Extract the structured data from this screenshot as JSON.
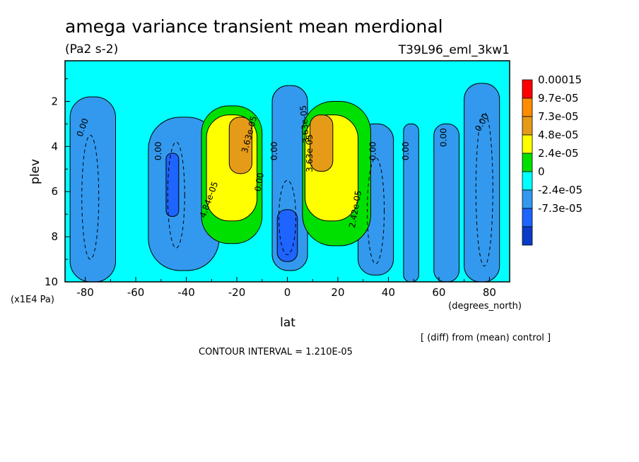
{
  "chart_data": {
    "type": "heatmap",
    "title": "amega variance transient mean merdional",
    "units": "(Pa2 s-2)",
    "run_id": "T39L96_eml_3kw1",
    "xlabel": "lat",
    "x_unit": "(degrees_north)",
    "ylabel": "plev",
    "y_unit": "(x1E4 Pa)",
    "x_ticks": [
      "-80",
      "-60",
      "-40",
      "-20",
      "0",
      "20",
      "40",
      "60",
      "80"
    ],
    "x_tick_values": [
      -80,
      -60,
      -40,
      -20,
      0,
      20,
      40,
      60,
      80
    ],
    "y_ticks": [
      "2",
      "4",
      "6",
      "8",
      "10"
    ],
    "y_tick_values": [
      2,
      4,
      6,
      8,
      10
    ],
    "xlim": [
      -88,
      88
    ],
    "ylim": [
      10,
      0.2
    ],
    "y_inverted": true,
    "grid": false,
    "legend_placement": "right",
    "legend": {
      "labels": [
        "0.00015",
        "9.7e-05",
        "7.3e-05",
        "4.8e-05",
        "2.4e-05",
        "0",
        "-2.4e-05",
        "-7.3e-05"
      ],
      "colors": [
        "#ff0000",
        "#ff8c00",
        "#e69b18",
        "#ffff00",
        "#00e000",
        "#00ffff",
        "#3399ee",
        "#1e64ff",
        "#0a3cc8"
      ]
    },
    "contour_labels": [
      "0.00",
      "0.00",
      "4.84e-05",
      "3.63e-05",
      "0.00",
      "3.63e-05",
      "3.63e-05",
      "2.42e-05",
      "0.00",
      "0.00",
      "0.00",
      "0.00",
      "0.00"
    ],
    "contour_interval_text": "CONTOUR INTERVAL = 1.210E-05",
    "diff_note": "[ (diff) from (mean) control ]",
    "regions": [
      {
        "level": "0",
        "lat": [
          -88,
          88
        ],
        "plev": [
          0.2,
          10
        ]
      },
      {
        "level": "-2.4e-05",
        "lat": [
          -86,
          -68
        ],
        "plev": [
          1.8,
          10
        ]
      },
      {
        "level": "-2.4e-05",
        "lat": [
          -55,
          -27
        ],
        "plev": [
          2.7,
          9.5
        ]
      },
      {
        "level": "-2.4e-05",
        "lat": [
          -6,
          8
        ],
        "plev": [
          1.3,
          9.5
        ]
      },
      {
        "level": "-2.4e-05",
        "lat": [
          28,
          42
        ],
        "plev": [
          3.0,
          9.7
        ]
      },
      {
        "level": "-2.4e-05",
        "lat": [
          46,
          52
        ],
        "plev": [
          3.0,
          10
        ]
      },
      {
        "level": "-2.4e-05",
        "lat": [
          58,
          68
        ],
        "plev": [
          3.0,
          10
        ]
      },
      {
        "level": "-2.4e-05",
        "lat": [
          70,
          84
        ],
        "plev": [
          1.2,
          10
        ]
      },
      {
        "level": "-7.3e-05",
        "lat": [
          -48,
          -43
        ],
        "plev": [
          4.3,
          7.1
        ]
      },
      {
        "level": "-7.3e-05",
        "lat": [
          -4,
          4
        ],
        "plev": [
          6.8,
          9.1
        ]
      },
      {
        "level": "2.4e-05",
        "lat": [
          -34,
          -10
        ],
        "plev": [
          2.2,
          8.3
        ]
      },
      {
        "level": "2.4e-05",
        "lat": [
          6,
          33
        ],
        "plev": [
          2.0,
          8.4
        ]
      },
      {
        "level": "4.8e-05",
        "lat": [
          -32,
          -12
        ],
        "plev": [
          2.6,
          7.3
        ]
      },
      {
        "level": "4.8e-05",
        "lat": [
          7,
          28
        ],
        "plev": [
          2.6,
          7.3
        ]
      },
      {
        "level": "7.3e-05",
        "lat": [
          -23,
          -14
        ],
        "plev": [
          2.7,
          5.2
        ]
      },
      {
        "level": "7.3e-05",
        "lat": [
          9,
          18
        ],
        "plev": [
          2.6,
          5.1
        ]
      }
    ]
  }
}
